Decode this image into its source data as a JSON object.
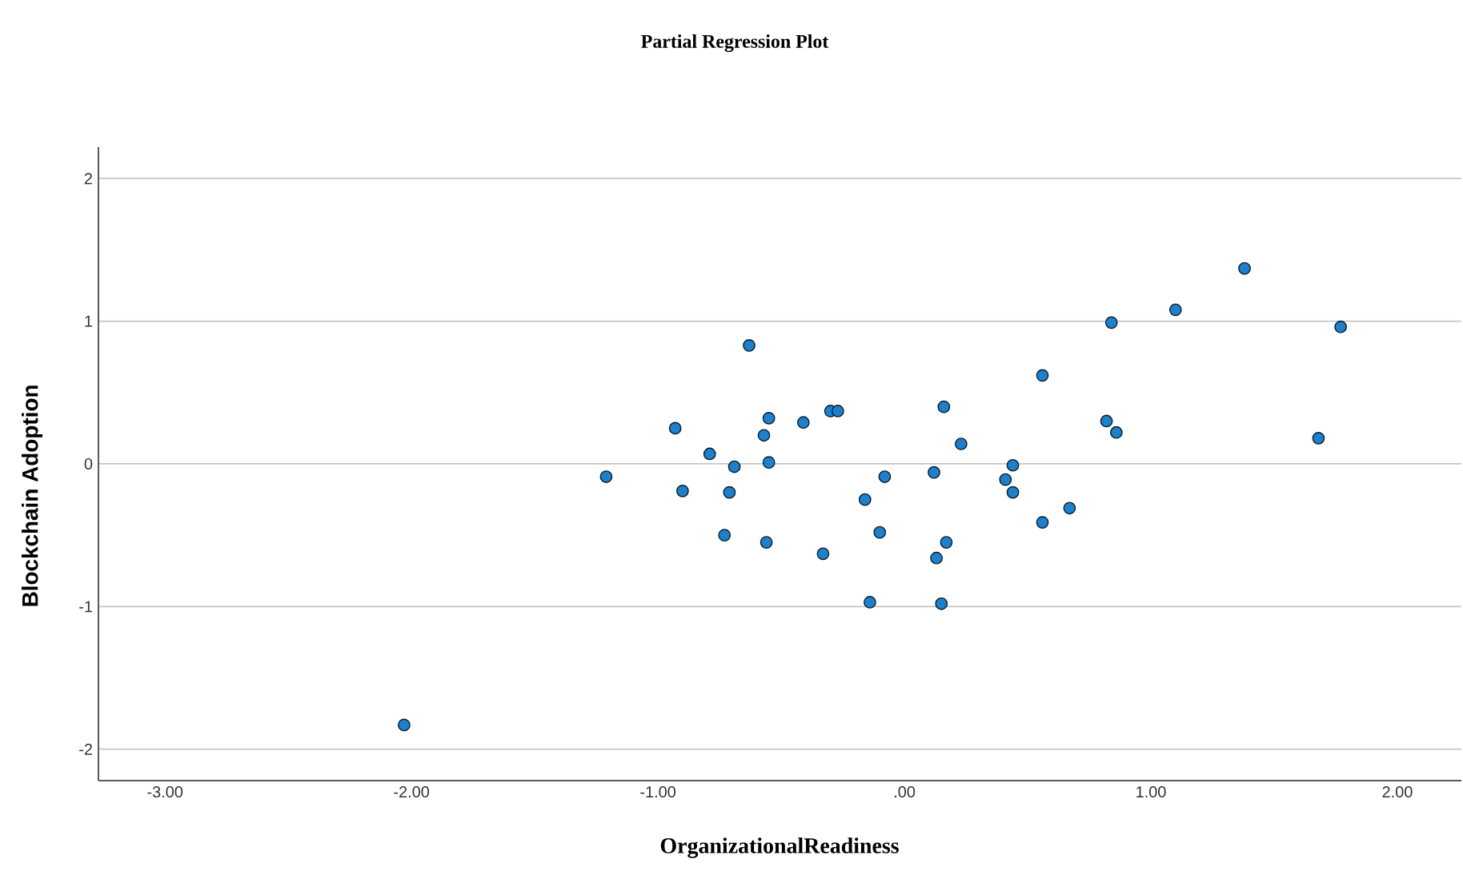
{
  "chart_data": {
    "type": "scatter",
    "title": "Partial Regression Plot",
    "xlabel": "OrganizationalReadiness",
    "ylabel": "Blockchain Adoption",
    "xlim": [
      -3.27,
      2.26
    ],
    "ylim": [
      -2.22,
      2.22
    ],
    "xticks": [
      {
        "value": -3,
        "label": "-3.00"
      },
      {
        "value": -2,
        "label": "-2.00"
      },
      {
        "value": -1,
        "label": "-1.00"
      },
      {
        "value": 0,
        "label": ".00"
      },
      {
        "value": 1,
        "label": "1.00"
      },
      {
        "value": 2,
        "label": "2.00"
      }
    ],
    "yticks": [
      -2,
      -1,
      0,
      1,
      2
    ],
    "grid": "y",
    "series": [
      {
        "color": "#1f7fc8",
        "x": [
          -2.03,
          -1.21,
          -0.93,
          -0.9,
          -0.79,
          -0.73,
          -0.71,
          -0.69,
          -0.63,
          -0.55,
          -0.57,
          -0.55,
          -0.56,
          -0.41,
          -0.3,
          -0.27,
          -0.33,
          -0.16,
          -0.14,
          -0.1,
          -0.08,
          0.12,
          0.16,
          0.23,
          0.13,
          0.17,
          0.15,
          0.44,
          0.41,
          0.44,
          0.56,
          0.56,
          0.67,
          0.82,
          0.86,
          0.84,
          1.1,
          1.38,
          1.68,
          1.77
        ],
        "values": [
          -1.83,
          -0.09,
          0.25,
          -0.19,
          0.07,
          -0.5,
          -0.2,
          -0.02,
          0.83,
          0.32,
          0.2,
          0.01,
          -0.55,
          0.29,
          0.37,
          0.37,
          -0.63,
          -0.25,
          -0.97,
          -0.48,
          -0.09,
          -0.06,
          0.4,
          0.14,
          -0.66,
          -0.55,
          -0.98,
          -0.01,
          -0.11,
          -0.2,
          0.62,
          -0.41,
          -0.31,
          0.3,
          0.22,
          0.99,
          1.08,
          1.37,
          0.18,
          0.96
        ]
      }
    ]
  }
}
